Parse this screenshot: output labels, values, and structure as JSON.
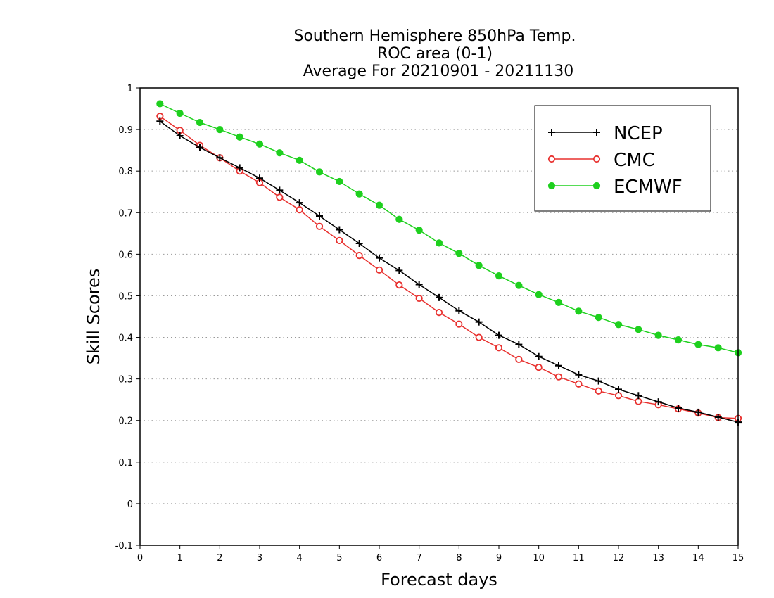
{
  "chart_data": {
    "type": "line",
    "title_lines": [
      "Southern Hemisphere 850hPa Temp.",
      "ROC area (0-1)",
      "Average For 20210901 - 20211130"
    ],
    "xlabel": "Forecast days",
    "ylabel": "Skill Scores",
    "xlim": [
      0,
      15
    ],
    "ylim": [
      -0.1,
      1
    ],
    "x_ticks": [
      0,
      1,
      2,
      3,
      4,
      5,
      6,
      7,
      8,
      9,
      10,
      11,
      12,
      13,
      14,
      15
    ],
    "y_ticks": [
      -0.1,
      0,
      0.1,
      0.2,
      0.3,
      0.4,
      0.5,
      0.6,
      0.7,
      0.8,
      0.9,
      1
    ],
    "y_tick_labels": [
      "-0.1",
      "0",
      "0.1",
      "0.2",
      "0.3",
      "0.4",
      "0.5",
      "0.6",
      "0.7",
      "0.8",
      "0.9",
      "1"
    ],
    "grid": "horizontal-dotted",
    "legend_position": "top-right",
    "x": [
      0.5,
      1,
      1.5,
      2,
      2.5,
      3,
      3.5,
      4,
      4.5,
      5,
      5.5,
      6,
      6.5,
      7,
      7.5,
      8,
      8.5,
      9,
      9.5,
      10,
      10.5,
      11,
      11.5,
      12,
      12.5,
      13,
      13.5,
      14,
      14.5,
      15
    ],
    "series": [
      {
        "name": "NCEP",
        "color": "#000000",
        "marker": "plus",
        "values": [
          0.92,
          0.885,
          0.857,
          0.832,
          0.808,
          0.783,
          0.754,
          0.724,
          0.692,
          0.659,
          0.626,
          0.591,
          0.561,
          0.527,
          0.496,
          0.464,
          0.437,
          0.405,
          0.383,
          0.354,
          0.332,
          0.31,
          0.295,
          0.275,
          0.26,
          0.245,
          0.23,
          0.22,
          0.208,
          0.196
        ]
      },
      {
        "name": "CMC",
        "color": "#e8302e",
        "marker": "open-circle",
        "values": [
          0.932,
          0.898,
          0.862,
          0.832,
          0.8,
          0.772,
          0.737,
          0.707,
          0.667,
          0.633,
          0.597,
          0.562,
          0.526,
          0.494,
          0.46,
          0.432,
          0.4,
          0.375,
          0.347,
          0.328,
          0.305,
          0.288,
          0.271,
          0.26,
          0.246,
          0.238,
          0.228,
          0.218,
          0.207,
          0.205
        ]
      },
      {
        "name": "ECMWF",
        "color": "#1ed01e",
        "marker": "filled-circle",
        "values": [
          0.962,
          0.939,
          0.917,
          0.9,
          0.882,
          0.865,
          0.844,
          0.826,
          0.798,
          0.775,
          0.745,
          0.718,
          0.684,
          0.658,
          0.627,
          0.602,
          0.573,
          0.548,
          0.525,
          0.503,
          0.484,
          0.463,
          0.448,
          0.431,
          0.419,
          0.405,
          0.394,
          0.383,
          0.375,
          0.363
        ]
      }
    ]
  }
}
